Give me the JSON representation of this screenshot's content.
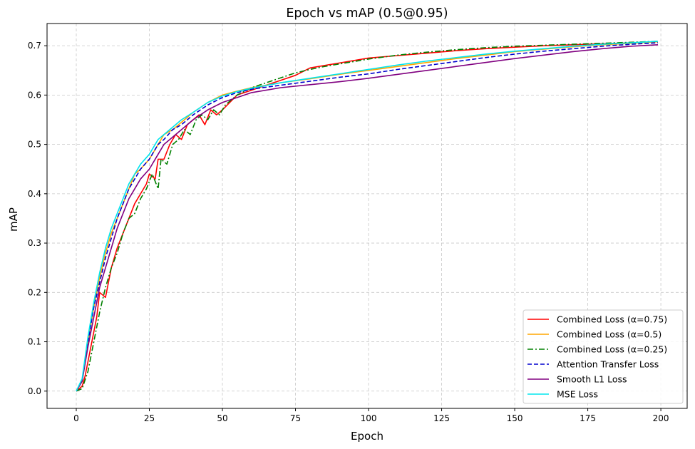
{
  "chart_data": {
    "type": "line",
    "title": "Epoch vs mAP (0.5@0.95)",
    "xlabel": "Epoch",
    "ylabel": "mAP",
    "xlim": [
      -10,
      209
    ],
    "ylim": [
      -0.035,
      0.745
    ],
    "xticks": [
      0,
      25,
      50,
      75,
      100,
      125,
      150,
      175,
      200
    ],
    "xtick_labels": [
      "0",
      "25",
      "50",
      "75",
      "100",
      "125",
      "150",
      "175",
      "200"
    ],
    "yticks": [
      0.0,
      0.1,
      0.2,
      0.3,
      0.4,
      0.5,
      0.6,
      0.7
    ],
    "ytick_labels": [
      "0.0",
      "0.1",
      "0.2",
      "0.3",
      "0.4",
      "0.5",
      "0.6",
      "0.7"
    ],
    "grid": true,
    "legend_position": "lower-right",
    "series": [
      {
        "name": "Combined Loss (α=0.75)",
        "color": "#ff0000",
        "style": "solid",
        "x": [
          0,
          2,
          3,
          5,
          7,
          8,
          10,
          12,
          14,
          16,
          18,
          20,
          22,
          24,
          25,
          27,
          28,
          30,
          32,
          34,
          36,
          38,
          40,
          42,
          44,
          46,
          48,
          50,
          55,
          60,
          65,
          70,
          75,
          80,
          85,
          90,
          95,
          100,
          110,
          120,
          130,
          140,
          150,
          160,
          170,
          180,
          190,
          199
        ],
        "y": [
          0.0,
          0.01,
          0.03,
          0.09,
          0.15,
          0.2,
          0.19,
          0.25,
          0.29,
          0.32,
          0.35,
          0.38,
          0.4,
          0.42,
          0.44,
          0.43,
          0.47,
          0.47,
          0.5,
          0.52,
          0.51,
          0.54,
          0.55,
          0.56,
          0.54,
          0.57,
          0.56,
          0.57,
          0.6,
          0.61,
          0.62,
          0.63,
          0.64,
          0.655,
          0.66,
          0.665,
          0.67,
          0.675,
          0.68,
          0.685,
          0.69,
          0.694,
          0.697,
          0.7,
          0.702,
          0.704,
          0.706,
          0.708
        ]
      },
      {
        "name": "Combined Loss (α=0.5)",
        "color": "#ffa500",
        "style": "solid",
        "x": [
          0,
          2,
          4,
          6,
          8,
          10,
          12,
          14,
          16,
          18,
          20,
          22,
          25,
          28,
          30,
          33,
          36,
          40,
          45,
          50,
          55,
          60,
          70,
          80,
          90,
          100,
          110,
          120,
          130,
          140,
          150,
          160,
          170,
          180,
          190,
          199
        ],
        "y": [
          0.0,
          0.02,
          0.1,
          0.17,
          0.23,
          0.28,
          0.32,
          0.35,
          0.38,
          0.41,
          0.44,
          0.45,
          0.47,
          0.5,
          0.52,
          0.53,
          0.545,
          0.565,
          0.585,
          0.6,
          0.608,
          0.615,
          0.625,
          0.633,
          0.642,
          0.65,
          0.658,
          0.666,
          0.674,
          0.681,
          0.688,
          0.693,
          0.698,
          0.702,
          0.705,
          0.708
        ]
      },
      {
        "name": "Combined Loss (α=0.25)",
        "color": "#008000",
        "style": "dashdot",
        "x": [
          0,
          2,
          4,
          6,
          8,
          10,
          12,
          14,
          16,
          18,
          20,
          22,
          24,
          26,
          28,
          29,
          31,
          33,
          35,
          37,
          39,
          41,
          43,
          45,
          47,
          49,
          51,
          55,
          60,
          65,
          70,
          75,
          80,
          85,
          90,
          95,
          100,
          110,
          120,
          130,
          140,
          150,
          160,
          170,
          180,
          190,
          199
        ],
        "y": [
          0.0,
          0.005,
          0.04,
          0.1,
          0.16,
          0.21,
          0.25,
          0.28,
          0.32,
          0.35,
          0.36,
          0.39,
          0.41,
          0.44,
          0.41,
          0.47,
          0.46,
          0.5,
          0.51,
          0.53,
          0.52,
          0.55,
          0.56,
          0.55,
          0.57,
          0.56,
          0.58,
          0.6,
          0.615,
          0.625,
          0.635,
          0.645,
          0.652,
          0.658,
          0.663,
          0.668,
          0.673,
          0.681,
          0.687,
          0.692,
          0.696,
          0.699,
          0.701,
          0.703,
          0.705,
          0.707,
          0.709
        ]
      },
      {
        "name": "Attention Transfer Loss",
        "color": "#0000cd",
        "style": "dashed",
        "x": [
          0,
          2,
          4,
          6,
          8,
          10,
          12,
          14,
          16,
          18,
          20,
          22,
          25,
          28,
          30,
          33,
          36,
          40,
          45,
          50,
          55,
          60,
          70,
          80,
          90,
          100,
          110,
          120,
          130,
          140,
          150,
          160,
          170,
          180,
          190,
          199
        ],
        "y": [
          0.0,
          0.02,
          0.1,
          0.17,
          0.22,
          0.27,
          0.31,
          0.35,
          0.38,
          0.41,
          0.43,
          0.45,
          0.47,
          0.5,
          0.51,
          0.53,
          0.54,
          0.56,
          0.58,
          0.595,
          0.605,
          0.612,
          0.62,
          0.628,
          0.636,
          0.643,
          0.652,
          0.66,
          0.668,
          0.676,
          0.683,
          0.689,
          0.694,
          0.699,
          0.703,
          0.706
        ]
      },
      {
        "name": "Smooth L1 Loss",
        "color": "#800080",
        "style": "solid",
        "x": [
          0,
          2,
          4,
          6,
          8,
          10,
          12,
          14,
          16,
          18,
          20,
          22,
          25,
          28,
          30,
          33,
          36,
          40,
          45,
          50,
          55,
          60,
          70,
          80,
          90,
          100,
          110,
          120,
          130,
          140,
          150,
          160,
          170,
          180,
          190,
          199
        ],
        "y": [
          0.0,
          0.02,
          0.09,
          0.15,
          0.21,
          0.25,
          0.29,
          0.33,
          0.36,
          0.39,
          0.41,
          0.43,
          0.45,
          0.48,
          0.5,
          0.515,
          0.53,
          0.55,
          0.57,
          0.585,
          0.595,
          0.605,
          0.615,
          0.621,
          0.627,
          0.634,
          0.642,
          0.65,
          0.658,
          0.666,
          0.674,
          0.681,
          0.688,
          0.694,
          0.699,
          0.702
        ]
      },
      {
        "name": "MSE Loss",
        "color": "#00e5ee",
        "style": "solid",
        "x": [
          0,
          2,
          4,
          6,
          8,
          10,
          12,
          14,
          16,
          18,
          20,
          22,
          25,
          28,
          30,
          33,
          36,
          40,
          45,
          50,
          55,
          60,
          70,
          80,
          90,
          100,
          110,
          120,
          130,
          140,
          150,
          160,
          170,
          180,
          190,
          199
        ],
        "y": [
          0.0,
          0.025,
          0.11,
          0.18,
          0.24,
          0.29,
          0.33,
          0.36,
          0.39,
          0.42,
          0.44,
          0.46,
          0.48,
          0.51,
          0.52,
          0.535,
          0.55,
          0.565,
          0.585,
          0.598,
          0.607,
          0.614,
          0.625,
          0.634,
          0.643,
          0.652,
          0.661,
          0.669,
          0.676,
          0.683,
          0.689,
          0.694,
          0.699,
          0.703,
          0.706,
          0.709
        ]
      }
    ]
  }
}
